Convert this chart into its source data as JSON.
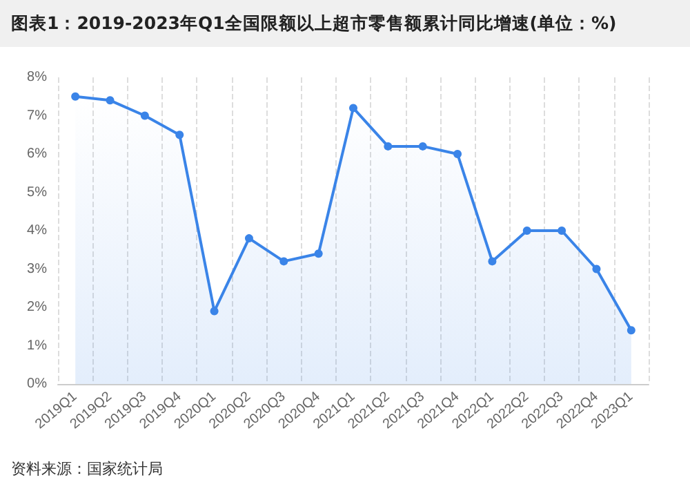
{
  "chart_data": {
    "type": "area",
    "title": "图表1：2019-2023年Q1全国限额以上超市零售额累计同比增速(单位：%)",
    "categories": [
      "2019Q1",
      "2019Q2",
      "2019Q3",
      "2019Q4",
      "2020Q1",
      "2020Q2",
      "2020Q3",
      "2020Q4",
      "2021Q1",
      "2021Q2",
      "2021Q3",
      "2021Q4",
      "2022Q1",
      "2022Q2",
      "2022Q3",
      "2022Q4",
      "2023Q1"
    ],
    "series": [
      {
        "color": "#3a84e8",
        "values": [
          7.5,
          7.4,
          7.0,
          6.5,
          1.9,
          3.8,
          3.2,
          3.4,
          7.2,
          6.2,
          6.2,
          6.0,
          3.2,
          4.0,
          4.0,
          3.0,
          1.4
        ]
      }
    ],
    "ylim": [
      0,
      8
    ],
    "yticks": [
      {
        "value": 0,
        "label": "0%"
      },
      {
        "value": 1,
        "label": "1%"
      },
      {
        "value": 2,
        "label": "2%"
      },
      {
        "value": 3,
        "label": "3%"
      },
      {
        "value": 4,
        "label": "4%"
      },
      {
        "value": 5,
        "label": "5%"
      },
      {
        "value": 6,
        "label": "6%"
      },
      {
        "value": 7,
        "label": "7%"
      },
      {
        "value": 8,
        "label": "8%"
      }
    ],
    "grid": "x",
    "marker": "circle",
    "annotations": [
      "资料来源：国家统计局"
    ]
  }
}
